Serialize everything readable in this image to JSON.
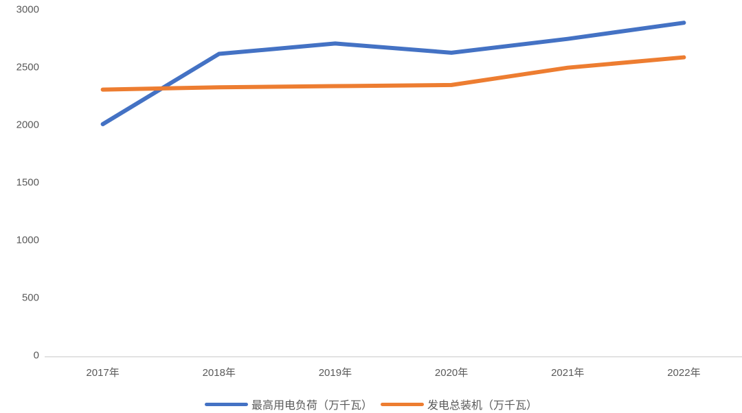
{
  "chart_data": {
    "type": "line",
    "title": "",
    "categories": [
      "2017年",
      "2018年",
      "2019年",
      "2020年",
      "2021年",
      "2022年"
    ],
    "series": [
      {
        "name": "最高用电负荷（万千瓦）",
        "color": "#4472C4",
        "values": [
          2000,
          2610,
          2700,
          2620,
          2740,
          2880
        ]
      },
      {
        "name": "发电总装机（万千瓦）",
        "color": "#ED7D31",
        "values": [
          2300,
          2320,
          2330,
          2340,
          2490,
          2580
        ]
      }
    ],
    "xlabel": "",
    "ylabel": "",
    "ylim": [
      0,
      3000
    ],
    "ytick_step": 500,
    "ytick_labels": [
      "0",
      "500",
      "1000",
      "1500",
      "2000",
      "2500",
      "3000"
    ],
    "grid": false,
    "legend_position": "bottom",
    "axis_color": "#d9d9d9",
    "tick_label_color": "#595959",
    "line_width": 6
  }
}
